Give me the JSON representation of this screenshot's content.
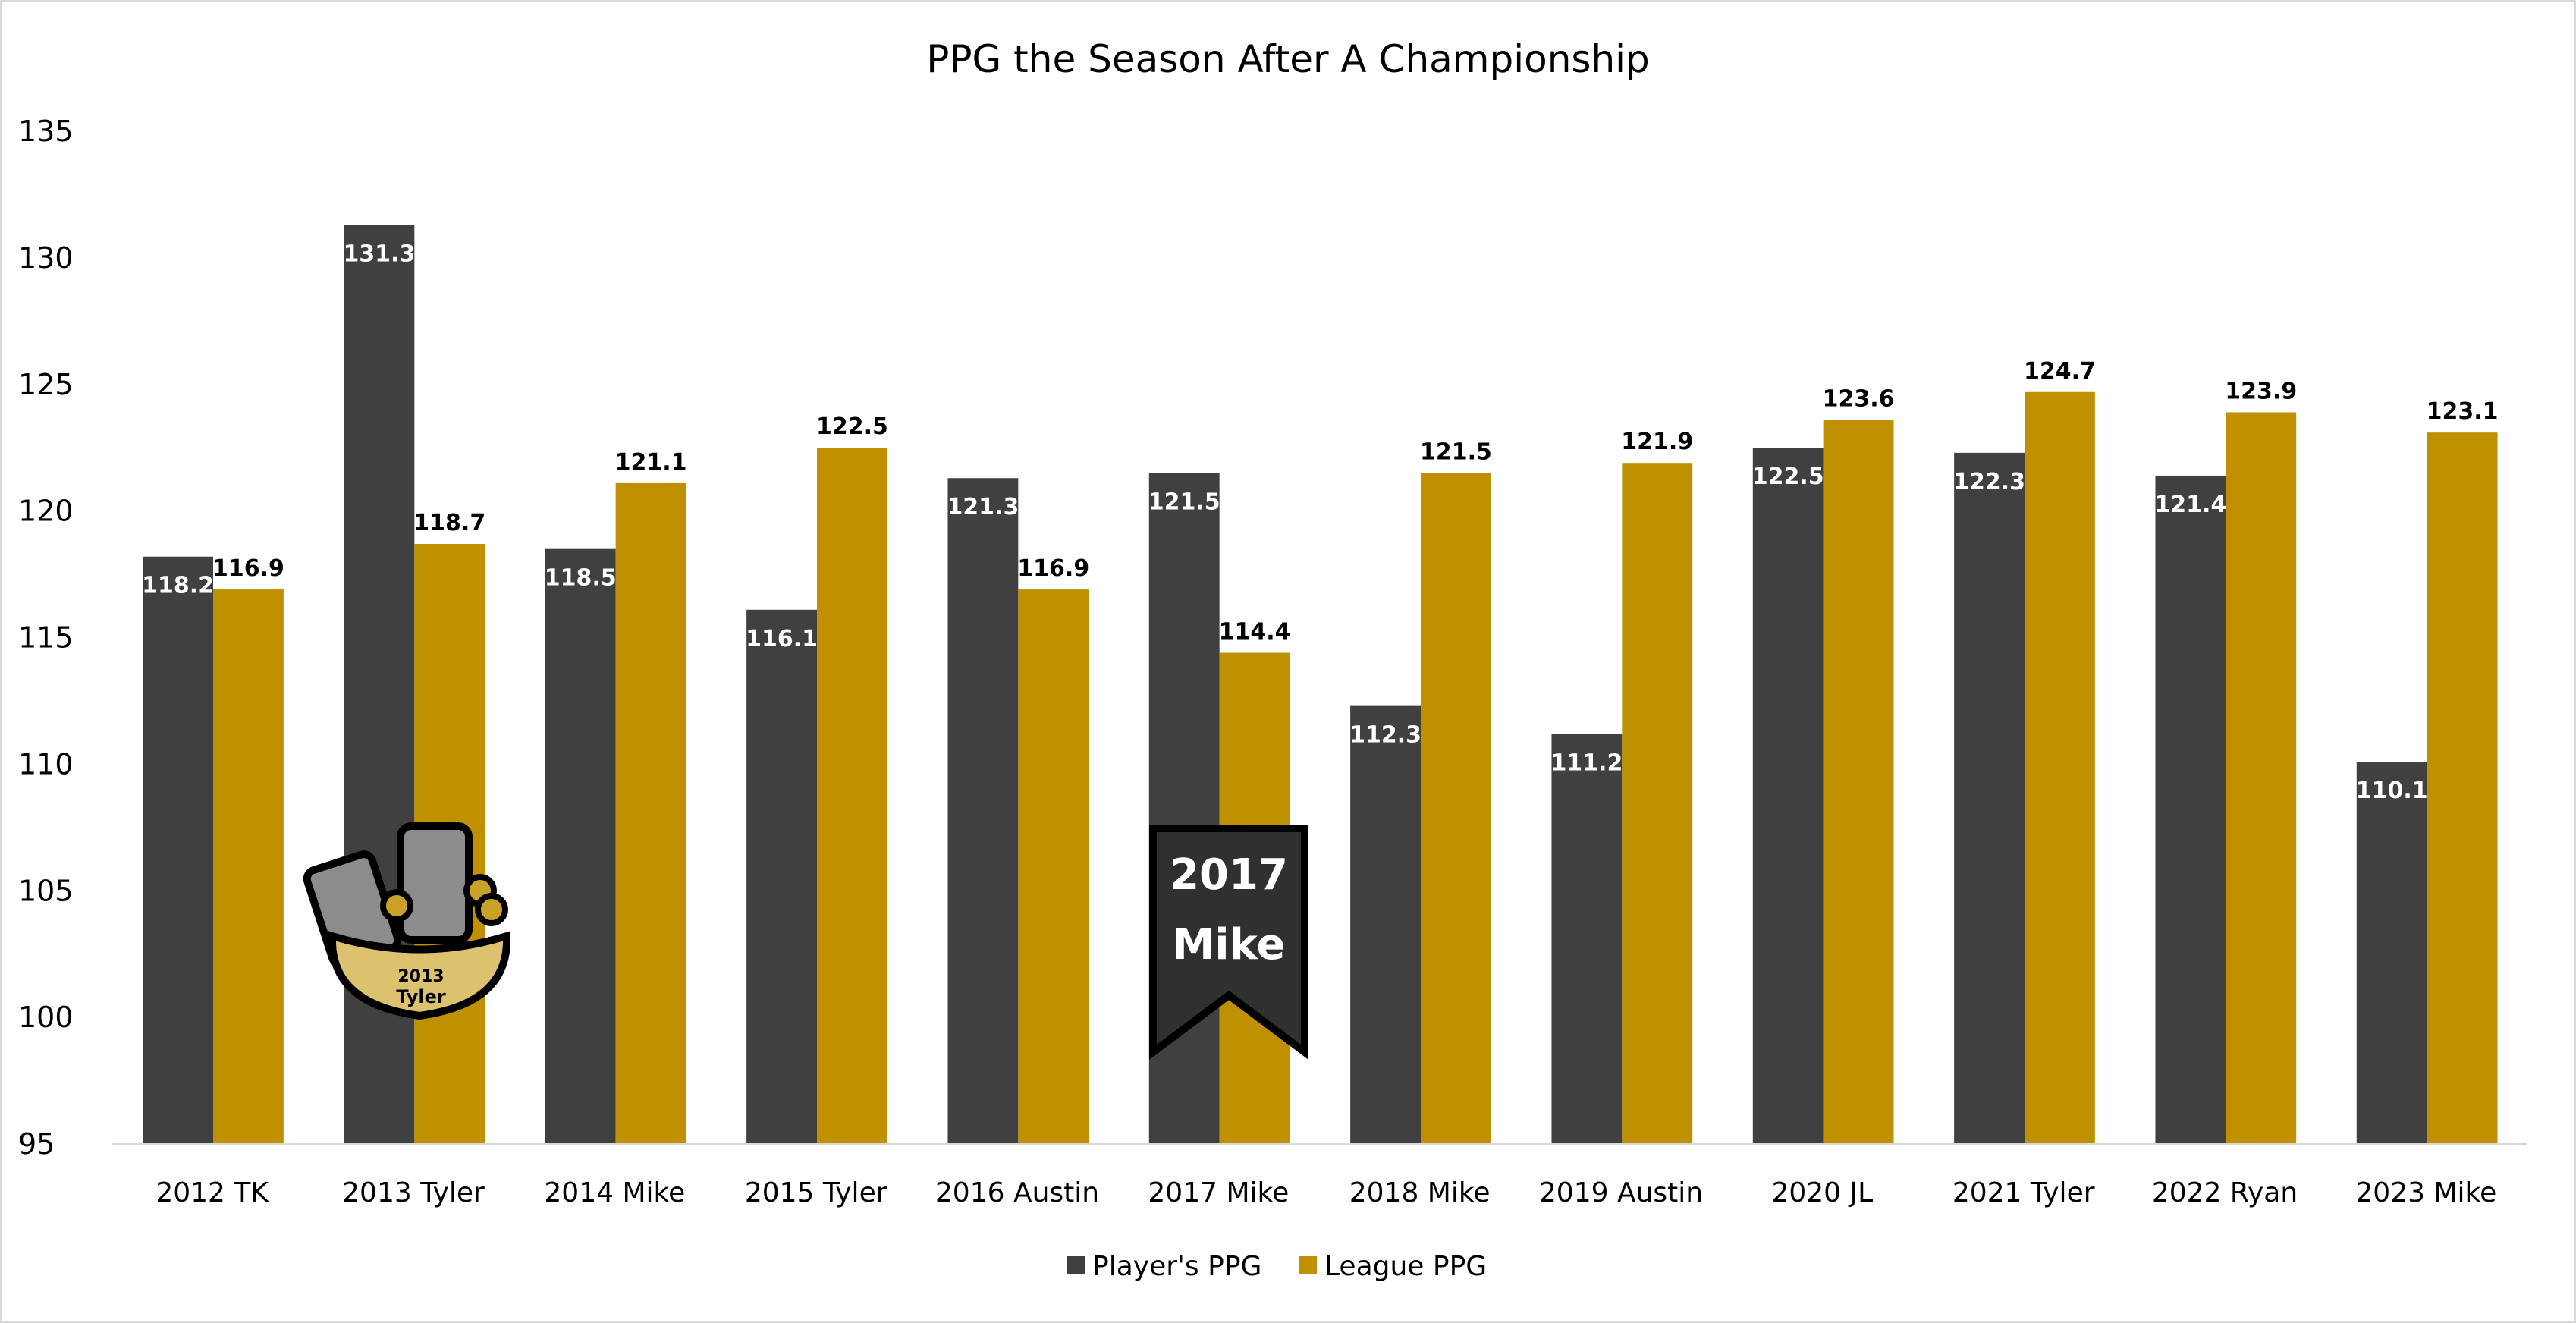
{
  "chart_data": {
    "type": "bar",
    "title": "PPG the Season After A Championship",
    "xlabel": "",
    "ylabel": "",
    "ylim": [
      95,
      135
    ],
    "yticks": [
      95,
      100,
      105,
      110,
      115,
      120,
      125,
      130,
      135
    ],
    "grid": false,
    "legend_position": "bottom",
    "categories": [
      "2012 TK",
      "2013 Tyler",
      "2014 Mike",
      "2015 Tyler",
      "2016 Austin",
      "2017 Mike",
      "2018 Mike",
      "2019 Austin",
      "2020 JL",
      "2021 Tyler",
      "2022 Ryan",
      "2023 Mike"
    ],
    "series": [
      {
        "name": "Player's PPG",
        "color": "#404040",
        "values": [
          118.2,
          131.3,
          118.5,
          116.1,
          121.3,
          121.5,
          112.3,
          111.2,
          122.5,
          122.3,
          121.4,
          110.1
        ]
      },
      {
        "name": "League PPG",
        "color": "#BF9000",
        "values": [
          116.9,
          118.7,
          121.1,
          122.5,
          116.9,
          114.4,
          121.5,
          121.9,
          123.6,
          124.7,
          123.9,
          123.1
        ]
      }
    ],
    "annotations": [
      {
        "type": "basket-icon",
        "category": "2013 Tyler",
        "line1": "2013",
        "line2": "Tyler"
      },
      {
        "type": "ribbon-banner",
        "category": "2017 Mike",
        "line1": "2017",
        "line2": "Mike"
      }
    ]
  }
}
